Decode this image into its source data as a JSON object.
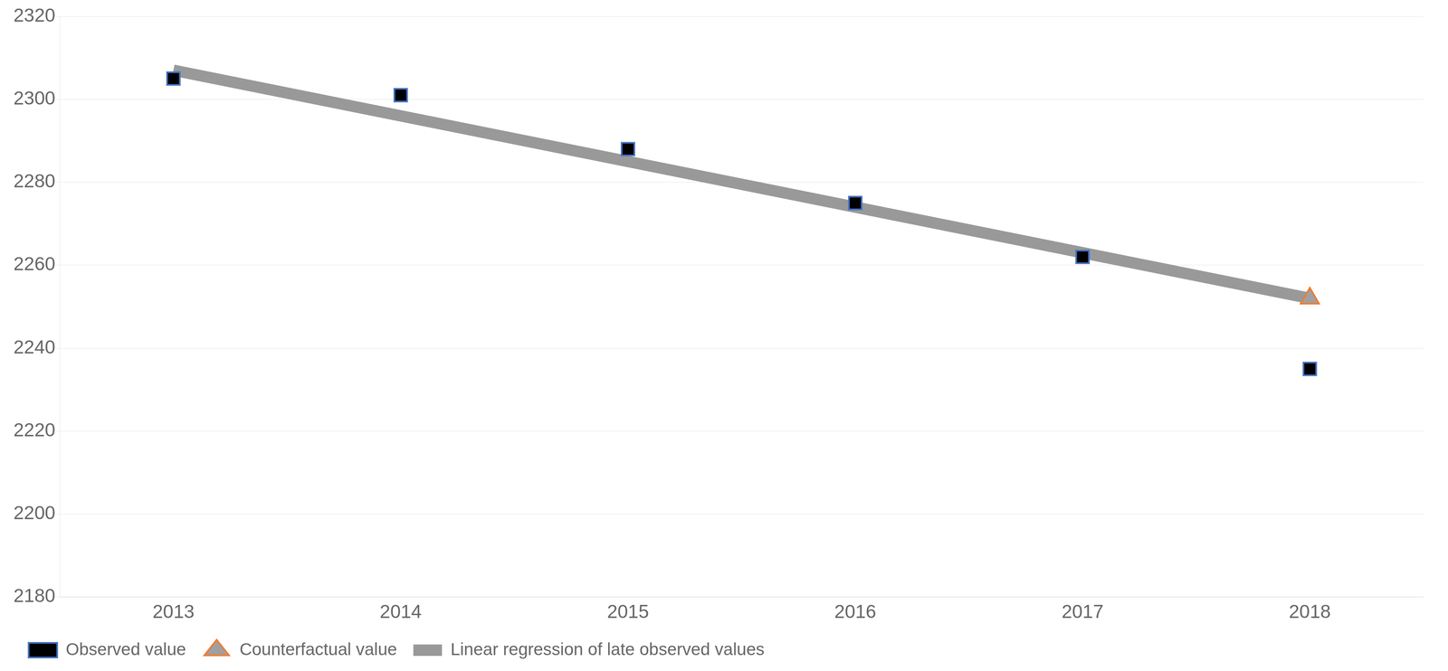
{
  "chart_data": {
    "type": "scatter",
    "xlim": [
      2012.5,
      2018.5
    ],
    "xticks": [
      2013,
      2014,
      2015,
      2016,
      2017,
      2018
    ],
    "ylim": [
      2180,
      2320
    ],
    "yticks": [
      2180,
      2200,
      2220,
      2240,
      2260,
      2280,
      2300,
      2320
    ],
    "grid": "y",
    "legend": "lower left",
    "series": [
      {
        "name": "Observed value",
        "type": "scatter",
        "marker": "square",
        "color": "#000000",
        "x": [
          2013,
          2014,
          2015,
          2016,
          2017,
          2018
        ],
        "values": [
          2305,
          2301,
          2288,
          2275,
          2262,
          2235
        ]
      },
      {
        "name": "Counterfactual value",
        "type": "scatter",
        "marker": "triangle",
        "color": "#a0a0a0",
        "x": [
          2018
        ],
        "values": [
          2252
        ]
      },
      {
        "name": "Linear regression of late observed values",
        "type": "line",
        "line_style": "solid",
        "color": "#999999",
        "x": [
          2013,
          2018
        ],
        "values": [
          2307,
          2252
        ]
      }
    ]
  }
}
